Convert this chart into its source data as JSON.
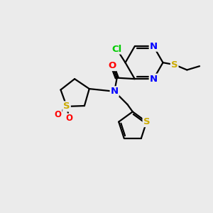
{
  "bg_color": "#ebebeb",
  "bond_color": "#000000",
  "atom_colors": {
    "N": "#0000ff",
    "O": "#ff0000",
    "S": "#ccaa00",
    "Cl": "#00cc00",
    "C": "#000000"
  },
  "figsize": [
    3.0,
    3.0
  ],
  "dpi": 100
}
